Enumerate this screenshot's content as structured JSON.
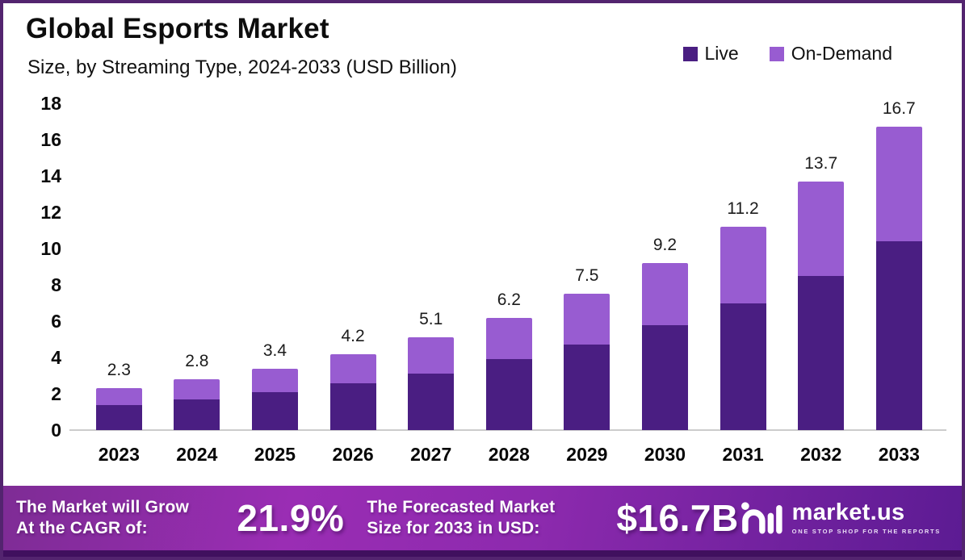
{
  "header": {
    "title": "Global Esports Market",
    "subtitle": "Size, by Streaming Type, 2024-2033 (USD Billion)"
  },
  "legend": {
    "items": [
      {
        "label": "Live",
        "color": "#4a1e82"
      },
      {
        "label": "On-Demand",
        "color": "#985cd1"
      }
    ]
  },
  "chart_data": {
    "type": "bar",
    "stacked": true,
    "title": "Global Esports Market",
    "subtitle": "Size, by Streaming Type, 2024-2033 (USD Billion)",
    "categories": [
      "2023",
      "2024",
      "2025",
      "2026",
      "2027",
      "2028",
      "2029",
      "2030",
      "2031",
      "2032",
      "2033"
    ],
    "series": [
      {
        "name": "Live",
        "color": "#4a1e82",
        "values": [
          1.4,
          1.7,
          2.1,
          2.6,
          3.1,
          3.9,
          4.7,
          5.8,
          7.0,
          8.5,
          10.4
        ]
      },
      {
        "name": "On-Demand",
        "color": "#985cd1",
        "values": [
          0.9,
          1.1,
          1.3,
          1.6,
          2.0,
          2.3,
          2.8,
          3.4,
          4.2,
          5.2,
          6.3
        ]
      }
    ],
    "totals": [
      2.3,
      2.8,
      3.4,
      4.2,
      5.1,
      6.2,
      7.5,
      9.2,
      11.2,
      13.7,
      16.7
    ],
    "total_labels": [
      "2.3",
      "2.8",
      "3.4",
      "4.2",
      "5.1",
      "6.2",
      "7.5",
      "9.2",
      "11.2",
      "13.7",
      "16.7"
    ],
    "xlabel": "",
    "ylabel": "",
    "ylim": [
      0,
      18
    ],
    "ytick_step": 2,
    "ytick_labels": [
      "0",
      "2",
      "4",
      "6",
      "8",
      "10",
      "12",
      "14",
      "16",
      "18"
    ],
    "grid": false,
    "legend_position": "top-right"
  },
  "banner": {
    "cagr_label_line1": "The Market will Grow",
    "cagr_label_line2": "At the CAGR of:",
    "cagr_value": "21.9%",
    "forecast_label_line1": "The Forecasted Market",
    "forecast_label_line2": "Size for 2033 in USD:",
    "forecast_value": "$16.7B",
    "brand_name": "market.us",
    "brand_tagline": "ONE STOP SHOP FOR THE REPORTS"
  },
  "colors": {
    "live": "#4a1e82",
    "on_demand": "#985cd1",
    "frame_border": "#53246f",
    "banner_gradient_left": "#7e2c95",
    "banner_gradient_mid": "#9a2db4",
    "banner_gradient_right": "#5c1b93",
    "banner_bottom_strip": "#40105e",
    "axis_line": "#cccccc"
  }
}
